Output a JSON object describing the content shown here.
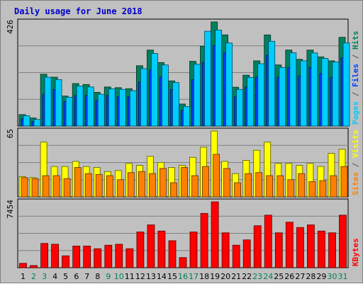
{
  "chart_data": {
    "type": "bar",
    "title": "Daily usage for June 2018",
    "title_color": "#0000cc",
    "days": [
      "1",
      "2",
      "3",
      "4",
      "5",
      "6",
      "7",
      "8",
      "9",
      "10",
      "11",
      "12",
      "13",
      "14",
      "15",
      "16",
      "17",
      "18",
      "19",
      "20",
      "21",
      "22",
      "23",
      "24",
      "25",
      "26",
      "27",
      "28",
      "29",
      "30",
      "31"
    ],
    "weekend_days": [
      "2",
      "3",
      "9",
      "10",
      "16",
      "17",
      "23",
      "24",
      "30",
      "31"
    ],
    "day_color": "#000000",
    "weekend_day_color": "#00805c",
    "panels": [
      {
        "id": "pages-files-hits",
        "ymax_label": "426",
        "ymax": 426,
        "right_label_parts": [
          {
            "text": "Pages",
            "color": "#00ccff"
          },
          {
            "text": " / ",
            "color": "#555555"
          },
          {
            "text": "Files",
            "color": "#0040ff"
          },
          {
            "text": " / ",
            "color": "#555555"
          },
          {
            "text": "Hits",
            "color": "#008060"
          }
        ],
        "series": [
          {
            "name": "Hits",
            "color": "#008060",
            "values": [
              47,
              33,
              212,
              200,
              123,
              174,
              170,
              138,
              160,
              157,
              153,
              247,
              311,
              260,
              185,
              90,
              265,
              327,
              426,
              373,
              159,
              208,
              267,
              373,
              250,
              311,
              273,
              311,
              283,
              267,
              363
            ]
          },
          {
            "name": "Files",
            "color": "#0040ff",
            "values": [
              30,
              18,
              130,
              150,
              100,
              125,
              125,
              105,
              125,
              120,
              120,
              180,
              230,
              200,
              150,
              65,
              190,
              260,
              330,
              300,
              120,
              160,
              200,
              290,
              200,
              240,
              205,
              240,
              215,
              200,
              280
            ]
          },
          {
            "name": "Pages",
            "color": "#00ccff",
            "values": [
              42,
              27,
              200,
              190,
              118,
              164,
              160,
              130,
              152,
              150,
              145,
              235,
              297,
              250,
              178,
              80,
              253,
              388,
              393,
              340,
              150,
              199,
              255,
              347,
              240,
              300,
              267,
              299,
              277,
              262,
              340
            ]
          }
        ]
      },
      {
        "id": "sites-visits",
        "ymax_label": "65",
        "ymax": 65,
        "right_label_parts": [
          {
            "text": "Sites",
            "color": "#ff8000"
          },
          {
            "text": " / ",
            "color": "#555555"
          },
          {
            "text": "Visits",
            "color": "#ffff00"
          }
        ],
        "series": [
          {
            "name": "Visits",
            "color": "#ffff00",
            "values": [
              20,
              19,
              54,
              30,
              30,
              35,
              30,
              29,
              25,
              26,
              33,
              31,
              40,
              34,
              29,
              31,
              39,
              49,
              65,
              35,
              23,
              36,
              46,
              54,
              33,
              33,
              31,
              33,
              30,
              43,
              47
            ]
          },
          {
            "name": "Sites",
            "color": "#ff8000",
            "values": [
              19,
              18,
              21,
              21,
              18,
              29,
              23,
              22,
              21,
              17,
              24,
              25,
              23,
              28,
              14,
              29,
              21,
              30,
              42,
              28,
              14,
              23,
              24,
              21,
              21,
              17,
              23,
              15,
              16,
              21,
              30
            ]
          }
        ]
      },
      {
        "id": "kbytes",
        "ymax_label": "7454",
        "ymax": 7454,
        "right_label_parts": [
          {
            "text": "KBytes",
            "color": "#ff0000"
          }
        ],
        "series": [
          {
            "name": "KBytes",
            "color": "#ff0000",
            "values": [
              500,
              250,
              2750,
              2650,
              1350,
              2450,
              2450,
              2150,
              2550,
              2650,
              2150,
              4050,
              4850,
              4150,
              3050,
              1150,
              4050,
              6150,
              7454,
              3950,
              2550,
              3150,
              4750,
              5950,
              3950,
              5150,
              4550,
              4850,
              4150,
              3950,
              5950
            ]
          }
        ]
      }
    ]
  }
}
